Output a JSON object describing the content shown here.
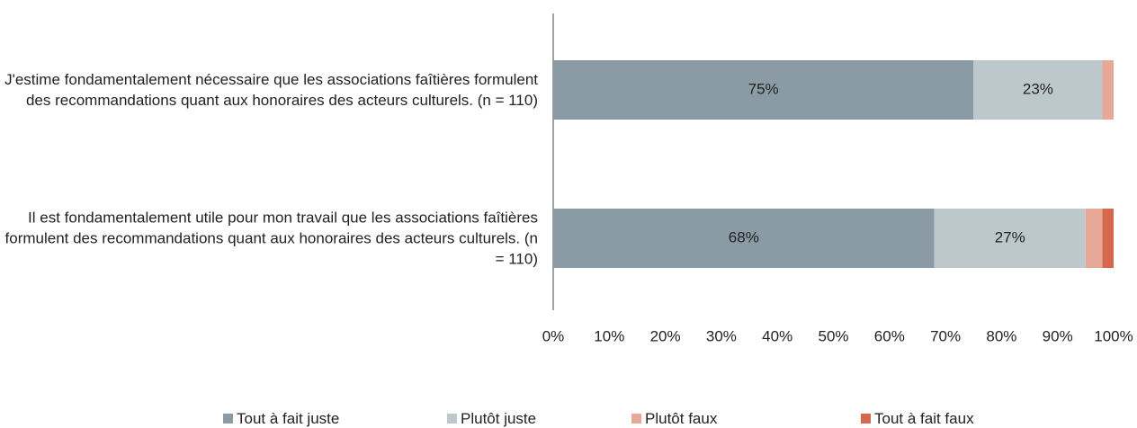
{
  "chart_data": {
    "type": "stacked_barh",
    "categories": [
      "J'estime fondamentalement nécessaire que les associations faîtières formulent des recommandations quant aux honoraires des acteurs culturels. (n = 110)",
      "Il est fondamentalement utile pour mon travail que les associations faîtières formulent des recommandations quant aux honoraires des acteurs culturels. (n = 110)"
    ],
    "series": [
      {
        "name": "Tout à fait juste",
        "color": "#8a9ba5",
        "values": [
          75,
          68
        ],
        "value_labels": [
          "75%",
          "68%"
        ]
      },
      {
        "name": "Plutôt juste",
        "color": "#bcc8cc",
        "values": [
          23,
          27
        ],
        "value_labels": [
          "23%",
          "27%"
        ]
      },
      {
        "name": "Plutôt faux",
        "color": "#e8a898",
        "values": [
          2,
          3
        ],
        "value_labels": [
          null,
          null
        ]
      },
      {
        "name": "Tout à fait faux",
        "color": "#d4694e",
        "values": [
          0,
          2
        ],
        "value_labels": [
          null,
          null
        ]
      }
    ],
    "xlim": [
      0,
      100
    ],
    "xticks": [
      {
        "value": 0,
        "label": "0%"
      },
      {
        "value": 10,
        "label": "10%"
      },
      {
        "value": 20,
        "label": "20%"
      },
      {
        "value": 30,
        "label": "30%"
      },
      {
        "value": 40,
        "label": "40%"
      },
      {
        "value": 50,
        "label": "50%"
      },
      {
        "value": 60,
        "label": "60%"
      },
      {
        "value": 70,
        "label": "70%"
      },
      {
        "value": 80,
        "label": "80%"
      },
      {
        "value": 90,
        "label": "90%"
      },
      {
        "value": 100,
        "label": "100%"
      }
    ],
    "legend": "bottom"
  }
}
